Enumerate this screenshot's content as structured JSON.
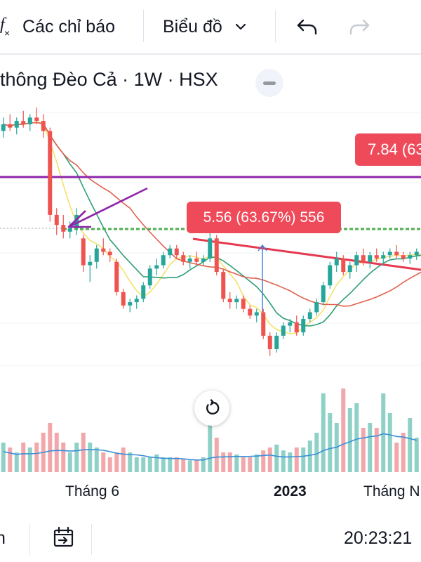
{
  "toolbar": {
    "indicators_label": "Các chỉ báo",
    "chart_type_label": "Biểu đồ"
  },
  "chart": {
    "title": "thông Đèo Cả · 1W · HSX",
    "price_label": "7.84 (63",
    "measure_label": "5.56 (63.67%) 556",
    "x_axis_labels": [
      "Tháng 6",
      "2023",
      "Tháng N"
    ]
  },
  "bottom_bar": {
    "left_text": "n",
    "time": "20:23:21"
  },
  "colors": {
    "bull": "#26a69a",
    "bear": "#ef5350",
    "purple_line": "#8e24aa",
    "green_line": "#4caf50",
    "trendline": "#e53950",
    "ma_yellow": "#f5e16b",
    "ma_green": "#2f9e73",
    "ma_red": "#e0604f",
    "volume_ma": "#3a8fd9",
    "badge": "#ef4a5a"
  },
  "icons": [
    "fx-icon",
    "chevron-down-icon",
    "undo-icon",
    "redo-icon",
    "minus-icon",
    "reset-icon",
    "calendar-goto-icon"
  ],
  "chart_data": {
    "type": "candlestick",
    "candles": [
      {
        "o": 7.7,
        "h": 7.9,
        "l": 7.6,
        "c": 7.8
      },
      {
        "o": 7.8,
        "h": 7.95,
        "l": 7.7,
        "c": 7.75
      },
      {
        "o": 7.75,
        "h": 7.9,
        "l": 7.65,
        "c": 7.85
      },
      {
        "o": 7.85,
        "h": 8.0,
        "l": 7.75,
        "c": 7.8
      },
      {
        "o": 7.8,
        "h": 7.95,
        "l": 7.7,
        "c": 7.9
      },
      {
        "o": 7.9,
        "h": 8.05,
        "l": 7.8,
        "c": 7.85
      },
      {
        "o": 7.85,
        "h": 7.95,
        "l": 7.6,
        "c": 7.7
      },
      {
        "o": 7.7,
        "h": 7.75,
        "l": 6.35,
        "c": 6.45
      },
      {
        "o": 6.45,
        "h": 6.55,
        "l": 6.15,
        "c": 6.3
      },
      {
        "o": 6.3,
        "h": 6.45,
        "l": 6.1,
        "c": 6.2
      },
      {
        "o": 6.2,
        "h": 6.35,
        "l": 6.1,
        "c": 6.25
      },
      {
        "o": 6.25,
        "h": 6.55,
        "l": 6.15,
        "c": 6.45
      },
      {
        "o": 6.1,
        "h": 6.15,
        "l": 5.6,
        "c": 5.7
      },
      {
        "o": 5.7,
        "h": 5.85,
        "l": 5.45,
        "c": 5.75
      },
      {
        "o": 5.75,
        "h": 6.0,
        "l": 5.65,
        "c": 5.95
      },
      {
        "o": 5.95,
        "h": 6.1,
        "l": 5.85,
        "c": 5.9
      },
      {
        "o": 5.9,
        "h": 5.95,
        "l": 5.75,
        "c": 5.85
      },
      {
        "o": 5.75,
        "h": 5.8,
        "l": 5.25,
        "c": 5.3
      },
      {
        "o": 5.3,
        "h": 5.35,
        "l": 5.05,
        "c": 5.1
      },
      {
        "o": 5.1,
        "h": 5.2,
        "l": 5.0,
        "c": 5.15
      },
      {
        "o": 5.15,
        "h": 5.25,
        "l": 5.05,
        "c": 5.2
      },
      {
        "o": 5.2,
        "h": 5.45,
        "l": 5.15,
        "c": 5.4
      },
      {
        "o": 5.4,
        "h": 5.7,
        "l": 5.35,
        "c": 5.65
      },
      {
        "o": 5.65,
        "h": 5.8,
        "l": 5.55,
        "c": 5.7
      },
      {
        "o": 5.7,
        "h": 5.9,
        "l": 5.65,
        "c": 5.85
      },
      {
        "o": 5.85,
        "h": 6.0,
        "l": 5.8,
        "c": 5.95
      },
      {
        "o": 5.95,
        "h": 6.0,
        "l": 5.8,
        "c": 5.85
      },
      {
        "o": 5.85,
        "h": 5.9,
        "l": 5.7,
        "c": 5.75
      },
      {
        "o": 5.75,
        "h": 5.85,
        "l": 5.65,
        "c": 5.8
      },
      {
        "o": 5.8,
        "h": 5.9,
        "l": 5.7,
        "c": 5.75
      },
      {
        "o": 5.75,
        "h": 5.85,
        "l": 5.7,
        "c": 5.8
      },
      {
        "o": 5.8,
        "h": 6.25,
        "l": 5.75,
        "c": 6.1
      },
      {
        "o": 6.1,
        "h": 6.15,
        "l": 5.55,
        "c": 5.6
      },
      {
        "o": 5.6,
        "h": 5.65,
        "l": 5.15,
        "c": 5.2
      },
      {
        "o": 5.2,
        "h": 5.3,
        "l": 5.05,
        "c": 5.15
      },
      {
        "o": 5.15,
        "h": 5.25,
        "l": 5.05,
        "c": 5.2
      },
      {
        "o": 5.2,
        "h": 5.25,
        "l": 5.0,
        "c": 5.05
      },
      {
        "o": 5.05,
        "h": 5.1,
        "l": 4.9,
        "c": 4.95
      },
      {
        "o": 4.95,
        "h": 5.05,
        "l": 4.85,
        "c": 5.0
      },
      {
        "o": 5.0,
        "h": 5.05,
        "l": 4.6,
        "c": 4.65
      },
      {
        "o": 4.65,
        "h": 4.7,
        "l": 4.35,
        "c": 4.45
      },
      {
        "o": 4.45,
        "h": 4.7,
        "l": 4.4,
        "c": 4.65
      },
      {
        "o": 4.65,
        "h": 4.85,
        "l": 4.6,
        "c": 4.8
      },
      {
        "o": 4.8,
        "h": 4.9,
        "l": 4.7,
        "c": 4.85
      },
      {
        "o": 4.85,
        "h": 4.95,
        "l": 4.65,
        "c": 4.7
      },
      {
        "o": 4.7,
        "h": 4.95,
        "l": 4.65,
        "c": 4.9
      },
      {
        "o": 4.9,
        "h": 5.05,
        "l": 4.85,
        "c": 5.0
      },
      {
        "o": 5.0,
        "h": 5.2,
        "l": 4.95,
        "c": 5.15
      },
      {
        "o": 5.15,
        "h": 5.45,
        "l": 5.1,
        "c": 5.4
      },
      {
        "o": 5.4,
        "h": 5.75,
        "l": 5.35,
        "c": 5.7
      },
      {
        "o": 5.7,
        "h": 5.9,
        "l": 5.6,
        "c": 5.8
      },
      {
        "o": 5.8,
        "h": 5.85,
        "l": 5.55,
        "c": 5.6
      },
      {
        "o": 5.6,
        "h": 5.75,
        "l": 5.5,
        "c": 5.7
      },
      {
        "o": 5.7,
        "h": 5.9,
        "l": 5.6,
        "c": 5.85
      },
      {
        "o": 5.85,
        "h": 5.95,
        "l": 5.7,
        "c": 5.75
      },
      {
        "o": 5.75,
        "h": 5.9,
        "l": 5.65,
        "c": 5.85
      },
      {
        "o": 5.85,
        "h": 5.95,
        "l": 5.75,
        "c": 5.8
      },
      {
        "o": 5.8,
        "h": 5.9,
        "l": 5.7,
        "c": 5.85
      },
      {
        "o": 5.85,
        "h": 5.95,
        "l": 5.8,
        "c": 5.9
      },
      {
        "o": 5.9,
        "h": 6.0,
        "l": 5.8,
        "c": 5.85
      },
      {
        "o": 5.85,
        "h": 5.9,
        "l": 5.75,
        "c": 5.8
      },
      {
        "o": 5.8,
        "h": 5.9,
        "l": 5.72,
        "c": 5.85
      },
      {
        "o": 5.85,
        "h": 5.95,
        "l": 5.78,
        "c": 5.9
      },
      {
        "o": 5.9,
        "h": 6.0,
        "l": 5.8,
        "c": 5.95
      }
    ],
    "volumes": [
      3,
      2.5,
      2,
      3,
      2.5,
      3,
      4,
      5,
      4,
      3,
      2,
      3,
      4,
      3,
      2.5,
      2,
      1.5,
      2,
      2.5,
      2,
      1.5,
      1.5,
      1.5,
      1.8,
      1.5,
      1.5,
      1.5,
      1.3,
      1.2,
      1.2,
      1.5,
      5,
      3.5,
      2,
      2,
      1.8,
      1.5,
      1.5,
      1.8,
      2.2,
      2.5,
      2.8,
      2.2,
      2,
      2.5,
      2.5,
      3.2,
      4,
      8,
      6,
      5,
      8.5,
      6.5,
      7,
      4.5,
      5,
      4.5,
      8,
      6,
      3,
      4,
      5.5,
      3.5
    ]
  }
}
